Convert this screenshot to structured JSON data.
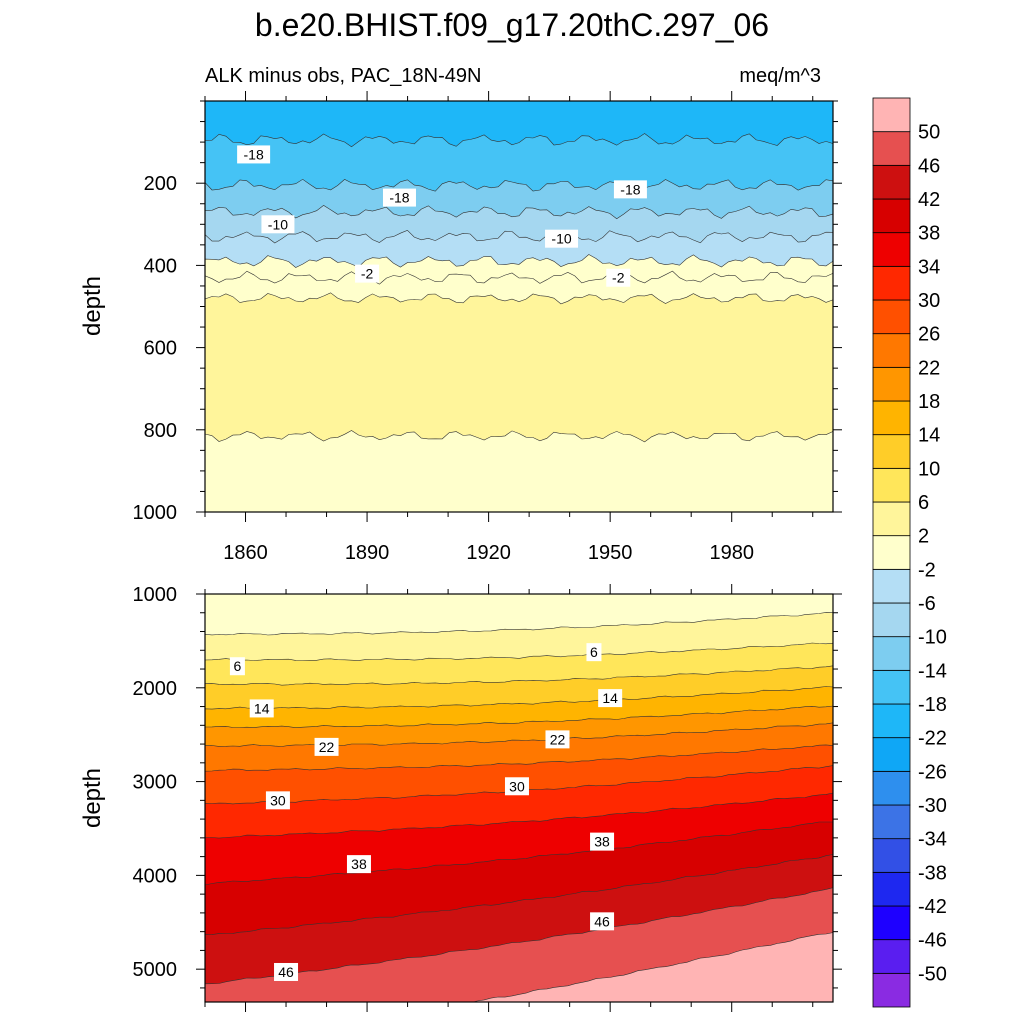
{
  "title": "b.e20.BHIST.f09_g17.20thC.297_06",
  "chart_data": {
    "type": "contour",
    "variable_label": "ALK minus obs, PAC_18N-49N",
    "units": "meq/m^3",
    "x_axis": {
      "tick_labels": [
        "1860",
        "1890",
        "1920",
        "1950",
        "1980"
      ],
      "ticks": [
        1860,
        1890,
        1920,
        1950,
        1980
      ],
      "range": [
        1850,
        2005
      ]
    },
    "colorbar": {
      "levels": [
        -50,
        -46,
        -42,
        -38,
        -34,
        -30,
        -26,
        -22,
        -18,
        -14,
        -10,
        -6,
        -2,
        2,
        6,
        10,
        14,
        18,
        22,
        26,
        30,
        34,
        38,
        42,
        46,
        50
      ],
      "level_labels": [
        "-50",
        "-46",
        "-42",
        "-38",
        "-34",
        "-30",
        "-26",
        "-22",
        "-18",
        "-14",
        "-10",
        "-6",
        "-2",
        "2",
        "6",
        "10",
        "14",
        "18",
        "22",
        "26",
        "30",
        "34",
        "38",
        "42",
        "46",
        "50"
      ],
      "colors": [
        "#8a2be2",
        "#5a1ef0",
        "#1e00ff",
        "#1e28f0",
        "#3250e6",
        "#3c73e6",
        "#2e8fee",
        "#0fa7f6",
        "#1eb7f8",
        "#45c3f5",
        "#7dcdf0",
        "#a5d7f0",
        "#b4def5",
        "#ffffcc",
        "#fff59b",
        "#ffe65a",
        "#ffcd28",
        "#ffb400",
        "#ff9600",
        "#ff7800",
        "#ff5000",
        "#ff2800",
        "#ee0000",
        "#d70000",
        "#cd1010",
        "#e65050",
        "#ffb4b4"
      ]
    },
    "panels": [
      {
        "name": "upper",
        "ylabel": "depth",
        "yrange": [
          0,
          1000
        ],
        "y_ticks": [
          200,
          400,
          600,
          800,
          1000
        ],
        "y_tick_labels": [
          "200",
          "400",
          "600",
          "800",
          "1000"
        ],
        "bands": [
          {
            "from_depth": 0,
            "to_depth": 95,
            "value": -22
          },
          {
            "from_depth": 95,
            "to_depth": 205,
            "value": -18
          },
          {
            "from_depth": 205,
            "to_depth": 270,
            "value": -14
          },
          {
            "from_depth": 270,
            "to_depth": 330,
            "value": -10
          },
          {
            "from_depth": 330,
            "to_depth": 390,
            "value": -6
          },
          {
            "from_depth": 390,
            "to_depth": 430,
            "value": -2
          },
          {
            "from_depth": 430,
            "to_depth": 480,
            "value": 0
          },
          {
            "from_depth": 480,
            "to_depth": 815,
            "value": 4
          },
          {
            "from_depth": 815,
            "to_depth": 1000,
            "value": 0
          }
        ],
        "contour_labels": [
          {
            "text": "-18",
            "x": 1862,
            "depth": 130
          },
          {
            "text": "-18",
            "x": 1898,
            "depth": 235
          },
          {
            "text": "-18",
            "x": 1955,
            "depth": 215
          },
          {
            "text": "-10",
            "x": 1868,
            "depth": 300
          },
          {
            "text": "-10",
            "x": 1938,
            "depth": 335
          },
          {
            "text": "-2",
            "x": 1890,
            "depth": 420
          },
          {
            "text": "-2",
            "x": 1952,
            "depth": 430
          }
        ]
      },
      {
        "name": "lower",
        "ylabel": "depth",
        "yrange": [
          1000,
          5350
        ],
        "y_ticks": [
          1000,
          2000,
          3000,
          4000,
          5000
        ],
        "y_tick_labels": [
          "1000",
          "2000",
          "3000",
          "4000",
          "5000"
        ],
        "contour_lines": [
          {
            "value": 2,
            "depth_start": 1430,
            "depth_end": 1200
          },
          {
            "value": 6,
            "depth_start": 1700,
            "depth_end": 1520
          },
          {
            "value": 10,
            "depth_start": 1960,
            "depth_end": 1770
          },
          {
            "value": 14,
            "depth_start": 2220,
            "depth_end": 1990
          },
          {
            "value": 18,
            "depth_start": 2420,
            "depth_end": 2190
          },
          {
            "value": 22,
            "depth_start": 2620,
            "depth_end": 2380
          },
          {
            "value": 26,
            "depth_start": 2880,
            "depth_end": 2610
          },
          {
            "value": 30,
            "depth_start": 3240,
            "depth_end": 2830
          },
          {
            "value": 34,
            "depth_start": 3600,
            "depth_end": 3130
          },
          {
            "value": 38,
            "depth_start": 4090,
            "depth_end": 3420
          },
          {
            "value": 42,
            "depth_start": 4640,
            "depth_end": 3780
          },
          {
            "value": 46,
            "depth_start": 5160,
            "depth_end": 4140
          },
          {
            "value": 50,
            "depth_start": 5800,
            "depth_end": 4600
          }
        ],
        "contour_labels": [
          {
            "text": "6",
            "x": 1858,
            "depth": 1770
          },
          {
            "text": "6",
            "x": 1946,
            "depth": 1620
          },
          {
            "text": "14",
            "x": 1864,
            "depth": 2220
          },
          {
            "text": "14",
            "x": 1950,
            "depth": 2110
          },
          {
            "text": "22",
            "x": 1880,
            "depth": 2630
          },
          {
            "text": "22",
            "x": 1937,
            "depth": 2550
          },
          {
            "text": "30",
            "x": 1868,
            "depth": 3200
          },
          {
            "text": "30",
            "x": 1927,
            "depth": 3050
          },
          {
            "text": "38",
            "x": 1888,
            "depth": 3880
          },
          {
            "text": "38",
            "x": 1948,
            "depth": 3640
          },
          {
            "text": "46",
            "x": 1870,
            "depth": 5030
          },
          {
            "text": "46",
            "x": 1948,
            "depth": 4490
          }
        ]
      }
    ]
  }
}
